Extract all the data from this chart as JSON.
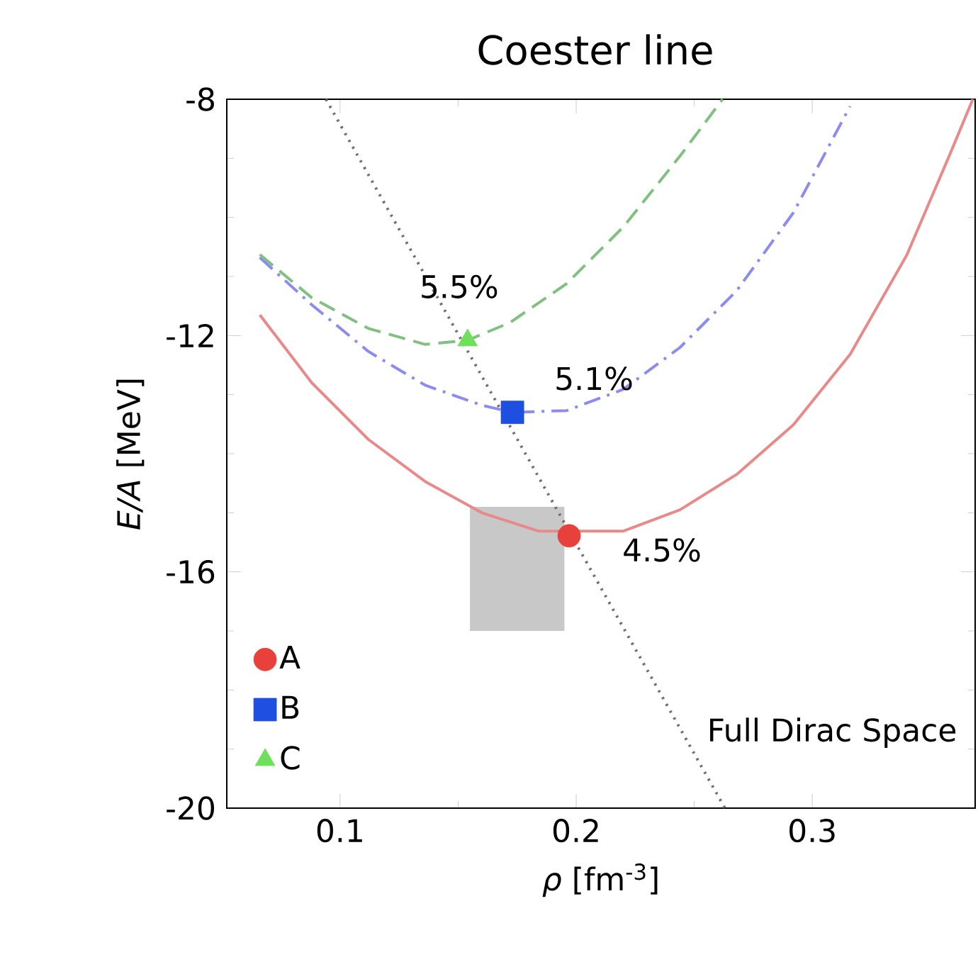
{
  "chart_data": {
    "type": "line",
    "title": "Coester line",
    "xlabel": "*ρ* [fm$^{-3}$]",
    "ylabel": "*E/A* [MeV]",
    "xlim": [
      0.052,
      0.369
    ],
    "ylim": [
      -20,
      -8
    ],
    "xticks": [
      0.1,
      0.2,
      0.3
    ],
    "yticks": [
      -8,
      -12,
      -16,
      -20
    ],
    "legend": "bottom left",
    "series": [
      {
        "color": "#c8c8c8",
        "x": [
          0.155,
          0.195
        ],
        "values": [
          null,
          null
        ],
        "lower": [
          -17.0,
          -17.0
        ],
        "upper": [
          -14.9,
          -14.9
        ]
      },
      {
        "color": "#e88a8a",
        "line_style": "solid",
        "x": [
          0.066,
          0.088,
          0.112,
          0.136,
          0.16,
          0.184,
          0.22,
          0.244,
          0.268,
          0.292,
          0.316,
          0.34,
          0.358,
          0.368
        ],
        "values": [
          -11.65,
          -12.8,
          -13.76,
          -14.47,
          -15.0,
          -15.31,
          -15.31,
          -14.95,
          -14.35,
          -13.51,
          -12.32,
          -10.64,
          -8.96,
          -8.0
        ]
      },
      {
        "color": "#8c8cf0",
        "line_style": "dashdot",
        "x": [
          0.066,
          0.088,
          0.112,
          0.136,
          0.16,
          0.173,
          0.196,
          0.22,
          0.244,
          0.268,
          0.292,
          0.316
        ],
        "values": [
          -10.68,
          -11.48,
          -12.27,
          -12.84,
          -13.18,
          -13.3,
          -13.27,
          -12.91,
          -12.2,
          -11.24,
          -9.92,
          -8.12
        ]
      },
      {
        "color": "#80c080",
        "line_style": "dashed",
        "x": [
          0.066,
          0.088,
          0.112,
          0.136,
          0.154,
          0.172,
          0.196,
          0.22,
          0.244,
          0.262
        ],
        "values": [
          -10.63,
          -11.36,
          -11.88,
          -12.15,
          -12.08,
          -11.78,
          -11.12,
          -10.16,
          -8.96,
          -8.0
        ]
      },
      {
        "color": "#707070",
        "line_style": "dotted",
        "x": [
          0.094,
          0.263
        ],
        "values": [
          -8,
          -20
        ]
      },
      {
        "type": "scatter",
        "name": "A",
        "color": "#e8403a",
        "marker": "circle",
        "x": [
          0.197
        ],
        "values": [
          -15.39
        ]
      },
      {
        "type": "scatter",
        "name": "B",
        "color": "#1f4fe0",
        "marker": "square",
        "x": [
          0.173
        ],
        "values": [
          -13.3
        ]
      },
      {
        "type": "scatter",
        "name": "C",
        "color": "#6ee05a",
        "marker": "triangle",
        "x": [
          0.154
        ],
        "values": [
          -12.08
        ]
      }
    ],
    "annotations": [
      {
        "text": "5.5%",
        "x": 0.154,
        "y": -12.08
      },
      {
        "text": "5.1%",
        "x": 0.173,
        "y": -13.3
      },
      {
        "text": "4.5%",
        "x": 0.197,
        "y": -15.39
      },
      "Full Dirac Space"
    ]
  }
}
